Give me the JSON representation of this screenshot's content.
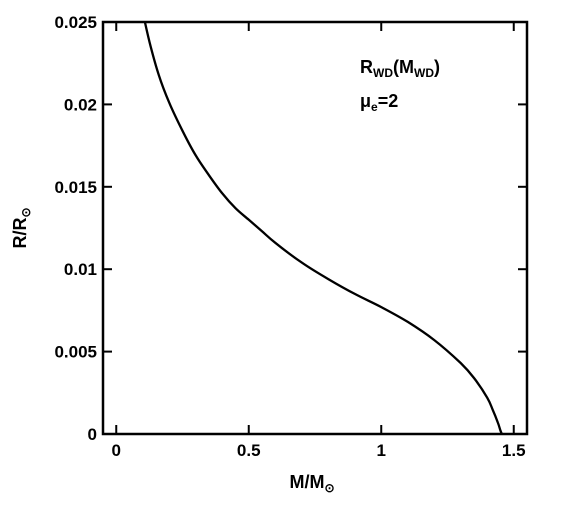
{
  "chart_data": {
    "type": "line",
    "xlabel": {
      "main": "M/M",
      "sub": "⊙"
    },
    "ylabel": {
      "main": "R/R",
      "sub": "⊙"
    },
    "xlim": [
      -0.05,
      1.55
    ],
    "ylim": [
      0,
      0.025
    ],
    "xticks": [
      0,
      0.5,
      1,
      1.5
    ],
    "xtick_labels": [
      "0",
      "0.5",
      "1",
      "1.5"
    ],
    "yticks": [
      0,
      0.005,
      0.01,
      0.015,
      0.02,
      0.025
    ],
    "ytick_labels": [
      "0",
      "0.005",
      "0.01",
      "0.015",
      "0.02",
      "0.025"
    ],
    "grid": false,
    "annotation": {
      "line1_main": "R",
      "line1_sub": "WD",
      "line1_paren_open": "(M",
      "line1_sub2": "WD",
      "line1_paren_close": ")",
      "line2_main": "μ",
      "line2_sub": "e",
      "line2_rest": "=2"
    },
    "series": [
      {
        "x": [
          0.108,
          0.13,
          0.16,
          0.2,
          0.25,
          0.3,
          0.35,
          0.4,
          0.45,
          0.5,
          0.55,
          0.6,
          0.7,
          0.8,
          0.9,
          1.0,
          1.1,
          1.2,
          1.3,
          1.35,
          1.4,
          1.42,
          1.44,
          1.45,
          1.455
        ],
        "y": [
          0.025,
          0.0235,
          0.0218,
          0.0201,
          0.0184,
          0.0169,
          0.0157,
          0.0146,
          0.0137,
          0.013,
          0.0123,
          0.0116,
          0.0104,
          0.0094,
          0.0085,
          0.0077,
          0.0068,
          0.0057,
          0.0043,
          0.0034,
          0.0022,
          0.0015,
          0.0007,
          0.0002,
          0.0
        ]
      }
    ]
  }
}
